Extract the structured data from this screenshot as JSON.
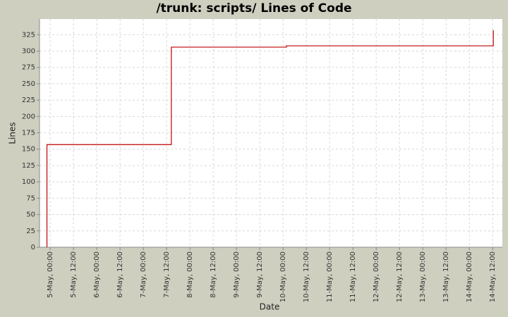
{
  "chart_data": {
    "type": "step-line",
    "title": "/trunk: scripts/ Lines of Code",
    "x_label": "Date",
    "y_label": "Lines",
    "x": [
      "4-May, 22:20",
      "4-May, 22:20",
      "7-May, 14:25",
      "7-May, 14:25",
      "10-May, 01:40",
      "10-May, 01:40",
      "14-May, 12:20",
      "14-May, 12:20"
    ],
    "values": [
      0,
      157,
      157,
      306,
      306,
      308,
      308,
      332
    ],
    "color": "#c00000",
    "xlim": [
      "4-May, 18:30",
      "14-May, 17:00"
    ],
    "xticks": [
      "5-May, 00:00",
      "5-May, 12:00",
      "6-May, 00:00",
      "6-May, 12:00",
      "7-May, 00:00",
      "7-May, 12:00",
      "8-May, 00:00",
      "8-May, 12:00",
      "9-May, 00:00",
      "9-May, 12:00",
      "10-May, 00:00",
      "10-May, 12:00",
      "11-May, 00:00",
      "11-May, 12:00",
      "12-May, 00:00",
      "12-May, 12:00",
      "13-May, 00:00",
      "13-May, 12:00",
      "14-May, 00:00",
      "14-May, 12:00"
    ],
    "ylim": [
      0,
      349
    ],
    "yticks": [
      0,
      25,
      50,
      75,
      100,
      125,
      150,
      175,
      200,
      225,
      250,
      275,
      300,
      325
    ],
    "grid": true
  }
}
